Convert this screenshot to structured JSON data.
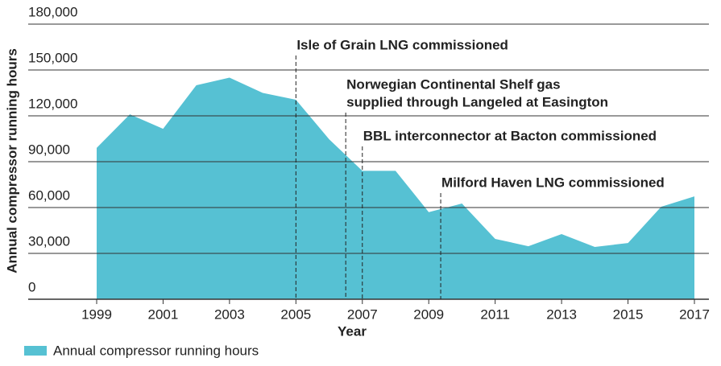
{
  "chart_data": {
    "type": "area",
    "x": [
      1999,
      2000,
      2001,
      2002,
      2003,
      2004,
      2005,
      2006,
      2007,
      2008,
      2009,
      2010,
      2011,
      2012,
      2013,
      2014,
      2015,
      2016,
      2017
    ],
    "series": [
      {
        "name": "Annual compressor running hours",
        "color": "#56c1d3",
        "values": [
          99000,
          121000,
          111500,
          140000,
          145000,
          135000,
          130500,
          104700,
          84000,
          84000,
          57000,
          62600,
          39500,
          34700,
          42600,
          34200,
          36800,
          60500,
          67300
        ]
      }
    ],
    "xlim": [
      1999,
      2017
    ],
    "xticks": [
      1999,
      2001,
      2003,
      2005,
      2007,
      2009,
      2011,
      2013,
      2015,
      2017
    ],
    "ylim": [
      0,
      180000
    ],
    "yticks": [
      {
        "value": 0,
        "label": "0"
      },
      {
        "value": 30000,
        "label": "30,000"
      },
      {
        "value": 60000,
        "label": "60,000"
      },
      {
        "value": 90000,
        "label": "90,000"
      },
      {
        "value": 120000,
        "label": "120,000"
      },
      {
        "value": 150000,
        "label": "150,000"
      },
      {
        "value": 180000,
        "label": "180,000"
      }
    ],
    "xlabel": "Year",
    "ylabel": "Annual compressor running hours",
    "grid": true,
    "legend": "bottom-left",
    "annotations": [
      {
        "x": 2005,
        "text": [
          "Isle of Grain LNG commissioned"
        ]
      },
      {
        "x": 2006.5,
        "text": [
          "Norwegian Continental Shelf gas",
          "supplied through Langeled at Easington"
        ]
      },
      {
        "x": 2007,
        "text": [
          "BBL interconnector at Bacton commissioned"
        ]
      },
      {
        "x": 2009.36,
        "text": [
          "Milford Haven LNG commissioned"
        ]
      }
    ]
  }
}
